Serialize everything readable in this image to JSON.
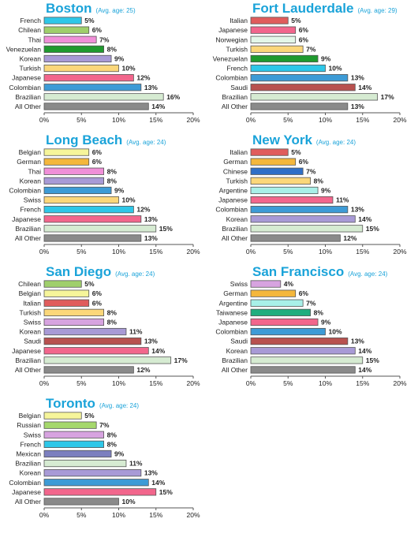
{
  "chart_data": [
    {
      "type": "bar",
      "orientation": "horizontal",
      "title": "Boston",
      "subtitle": "(Avg. age: 25)",
      "categories": [
        "French",
        "Chilean",
        "Thai",
        "Venezuelan",
        "Korean",
        "Turkish",
        "Japanese",
        "Colombian",
        "Brazilian",
        "All Other"
      ],
      "values": [
        5,
        6,
        7,
        8,
        9,
        10,
        12,
        13,
        16,
        14
      ],
      "value_labels": [
        "5%",
        "6%",
        "7%",
        "8%",
        "9%",
        "10%",
        "12%",
        "13%",
        "16%",
        "14%"
      ],
      "colors": [
        "#2ec7e8",
        "#9fcf6b",
        "#f08fd8",
        "#1f9a2e",
        "#a89ad6",
        "#fbd77a",
        "#f2668c",
        "#3d9bd6",
        "#d6ebd2",
        "#8a8a8a"
      ],
      "xlim": [
        0,
        20
      ],
      "xticks": [
        "0%",
        "5%",
        "10%",
        "15%",
        "20%"
      ]
    },
    {
      "type": "bar",
      "orientation": "horizontal",
      "title": "Fort Lauderdale",
      "subtitle": "(Avg. age: 29)",
      "categories": [
        "Italian",
        "Japanese",
        "Norwegian",
        "Turkish",
        "Venezuelan",
        "French",
        "Colombian",
        "Saudi",
        "Brazilian",
        "All Other"
      ],
      "values": [
        5,
        6,
        6,
        7,
        9,
        10,
        13,
        14,
        17,
        13
      ],
      "value_labels": [
        "5%",
        "6%",
        "6%",
        "7%",
        "9%",
        "10%",
        "13%",
        "14%",
        "17%",
        "13%"
      ],
      "colors": [
        "#e05c5c",
        "#f2668c",
        "#e3f7e8",
        "#fbd77a",
        "#1f9a2e",
        "#2ec7e8",
        "#3d9bd6",
        "#b8514f",
        "#d6ebd2",
        "#8a8a8a"
      ],
      "xlim": [
        0,
        20
      ],
      "xticks": [
        "0%",
        "5%",
        "10%",
        "15%",
        "20%"
      ]
    },
    {
      "type": "bar",
      "orientation": "horizontal",
      "title": "Long Beach",
      "subtitle": "(Avg. age: 24)",
      "categories": [
        "Belgian",
        "German",
        "Thai",
        "Korean",
        "Colombian",
        "Swiss",
        "French",
        "Japanese",
        "Brazilian",
        "All Other"
      ],
      "values": [
        6,
        6,
        8,
        8,
        9,
        10,
        12,
        13,
        15,
        13
      ],
      "value_labels": [
        "6%",
        "6%",
        "8%",
        "8%",
        "9%",
        "10%",
        "12%",
        "13%",
        "15%",
        "13%"
      ],
      "colors": [
        "#f6f59a",
        "#f4b73c",
        "#f08fd8",
        "#a89ad6",
        "#3d9bd6",
        "#fbd77a",
        "#2ec7e8",
        "#f2668c",
        "#d6ebd2",
        "#8a8a8a"
      ],
      "xlim": [
        0,
        20
      ],
      "xticks": [
        "0%",
        "5%",
        "10%",
        "15%",
        "20%"
      ]
    },
    {
      "type": "bar",
      "orientation": "horizontal",
      "title": "New York",
      "subtitle": "(Avg. age: 24)",
      "categories": [
        "Italian",
        "German",
        "Chinese",
        "Turkish",
        "Argentine",
        "Japanese",
        "Colombian",
        "Korean",
        "Brazilian",
        "All Other"
      ],
      "values": [
        5,
        6,
        7,
        8,
        9,
        11,
        13,
        14,
        15,
        12
      ],
      "value_labels": [
        "5%",
        "6%",
        "7%",
        "8%",
        "9%",
        "11%",
        "13%",
        "14%",
        "15%",
        "12%"
      ],
      "colors": [
        "#e05c5c",
        "#f4b73c",
        "#2f6fc7",
        "#fbd77a",
        "#a8f0e8",
        "#f2668c",
        "#3d9bd6",
        "#a89ad6",
        "#d6ebd2",
        "#8a8a8a"
      ],
      "xlim": [
        0,
        20
      ],
      "xticks": [
        "0%",
        "5%",
        "10%",
        "15%",
        "20%"
      ]
    },
    {
      "type": "bar",
      "orientation": "horizontal",
      "title": "San Diego",
      "subtitle": "(Avg. age: 24)",
      "categories": [
        "Chilean",
        "Belgian",
        "Italian",
        "Turkish",
        "Swiss",
        "Korean",
        "Saudi",
        "Japanese",
        "Brazilian",
        "All Other"
      ],
      "values": [
        5,
        6,
        6,
        8,
        8,
        11,
        13,
        14,
        17,
        12
      ],
      "value_labels": [
        "5%",
        "6%",
        "6%",
        "8%",
        "8%",
        "11%",
        "13%",
        "14%",
        "17%",
        "12%"
      ],
      "colors": [
        "#9fcf6b",
        "#f6f59a",
        "#e05c5c",
        "#fbd77a",
        "#d7a3e0",
        "#a89ad6",
        "#b8514f",
        "#f2668c",
        "#d6ebd2",
        "#8a8a8a"
      ],
      "xlim": [
        0,
        20
      ],
      "xticks": [
        "0%",
        "5%",
        "10%",
        "15%",
        "20%"
      ]
    },
    {
      "type": "bar",
      "orientation": "horizontal",
      "title": "San Francisco",
      "subtitle": "(Avg. age: 24)",
      "categories": [
        "Swiss",
        "German",
        "Argentine",
        "Taiwanese",
        "Japanese",
        "Colombian",
        "Saudi",
        "Korean",
        "Brazilian",
        "All Other"
      ],
      "values": [
        4,
        6,
        7,
        8,
        9,
        10,
        13,
        14,
        15,
        14
      ],
      "value_labels": [
        "4%",
        "6%",
        "7%",
        "8%",
        "9%",
        "10%",
        "13%",
        "14%",
        "15%",
        "14%"
      ],
      "colors": [
        "#d7a3e0",
        "#f4b73c",
        "#a8f0e8",
        "#1fae7e",
        "#f2668c",
        "#3d9bd6",
        "#b8514f",
        "#a89ad6",
        "#d6ebd2",
        "#8a8a8a"
      ],
      "xlim": [
        0,
        20
      ],
      "xticks": [
        "0%",
        "5%",
        "10%",
        "15%",
        "20%"
      ]
    },
    {
      "type": "bar",
      "orientation": "horizontal",
      "title": "Toronto",
      "subtitle": "(Avg. age: 24)",
      "categories": [
        "Belgian",
        "Russian",
        "Swiss",
        "French",
        "Mexican",
        "Brazilian",
        "Korean",
        "Colombian",
        "Japanese",
        "All Other"
      ],
      "values": [
        5,
        7,
        8,
        8,
        9,
        11,
        13,
        14,
        15,
        10
      ],
      "value_labels": [
        "5%",
        "7%",
        "8%",
        "8%",
        "9%",
        "11%",
        "13%",
        "14%",
        "15%",
        "10%"
      ],
      "colors": [
        "#f6f59a",
        "#a5d86b",
        "#d7a3e0",
        "#2ec7e8",
        "#7c7fbf",
        "#d6ebd2",
        "#a89ad6",
        "#3d9bd6",
        "#f2668c",
        "#8a8a8a"
      ],
      "xlim": [
        0,
        20
      ],
      "xticks": [
        "0%",
        "5%",
        "10%",
        "15%",
        "20%"
      ]
    }
  ]
}
